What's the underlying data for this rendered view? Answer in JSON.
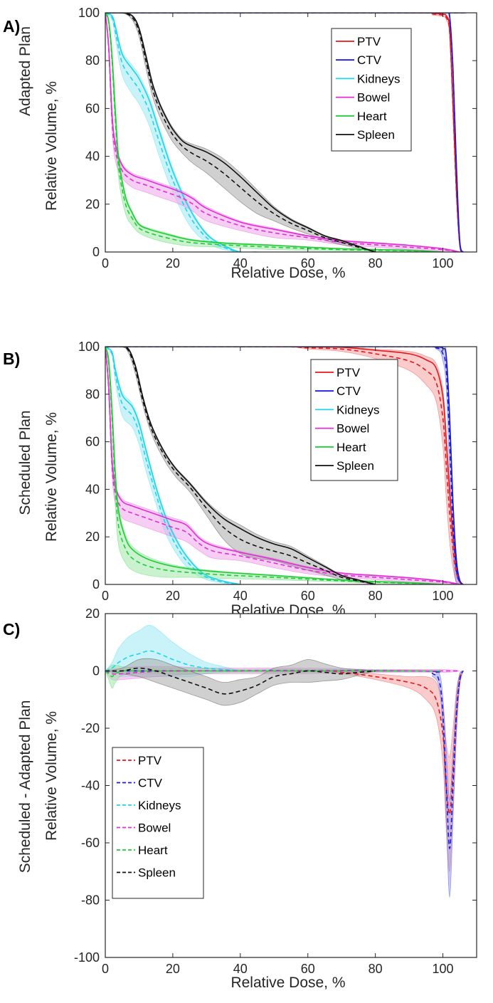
{
  "figure": {
    "xlabel": "Relative Dose, %",
    "ylabel": "Relative Volume, %"
  },
  "chart_data": [
    {
      "panel": "A)",
      "type": "line",
      "title": "",
      "row_label": "Adapted Plan",
      "xlabel": "Relative Dose, %",
      "ylabel": "Relative Volume, %",
      "xlim": [
        0,
        110
      ],
      "ylim": [
        0,
        100
      ],
      "xticks": [
        0,
        20,
        40,
        60,
        80,
        100
      ],
      "yticks": [
        0,
        20,
        40,
        60,
        80,
        100
      ],
      "legend_position": "top-right",
      "series": [
        {
          "name": "PTV",
          "color": "#e8161b",
          "band_color": "#f4a0a0",
          "x": [
            0,
            90,
            97,
            100,
            101,
            102,
            103,
            104,
            105,
            106
          ],
          "mean": [
            100,
            100,
            99.5,
            99,
            98,
            92,
            60,
            25,
            3,
            0
          ],
          "band": [
            0,
            0,
            0.5,
            0.5,
            1,
            1.5,
            2,
            2,
            1,
            0
          ]
        },
        {
          "name": "CTV",
          "color": "#1a1ad9",
          "band_color": "#9a9af0",
          "x": [
            0,
            99,
            101,
            102,
            103,
            104,
            105,
            106
          ],
          "mean": [
            100,
            100,
            100,
            98,
            75,
            35,
            4,
            0
          ],
          "band": [
            0,
            0,
            0,
            1,
            2,
            2,
            1,
            0
          ]
        },
        {
          "name": "Kidneys",
          "color": "#1fd4ea",
          "band_color": "#9ce9f4",
          "x": [
            0,
            2,
            3,
            5,
            8,
            10,
            13,
            16,
            20,
            25,
            30,
            35,
            40,
            45
          ],
          "mean": [
            100,
            98,
            92,
            79,
            72,
            68,
            59,
            46,
            30,
            15,
            6,
            2,
            0,
            0
          ],
          "band": [
            0,
            1,
            3,
            5,
            6,
            6,
            6,
            6,
            5,
            4,
            2,
            1,
            0,
            0
          ]
        },
        {
          "name": "Bowel",
          "color": "#e12ed6",
          "band_color": "#f1a6ea",
          "x": [
            0,
            1,
            2,
            3,
            5,
            8,
            12,
            16,
            22,
            26,
            30,
            40,
            50,
            60,
            70,
            80,
            90,
            100,
            105
          ],
          "mean": [
            100,
            85,
            55,
            42,
            34,
            30,
            28,
            26,
            23,
            20,
            16,
            11,
            8,
            6,
            4,
            3,
            2,
            1,
            0
          ],
          "band": [
            0,
            2,
            4,
            4,
            3,
            3,
            3,
            3,
            3,
            3,
            3,
            2,
            2,
            1,
            1,
            1,
            1,
            0.5,
            0
          ]
        },
        {
          "name": "Heart",
          "color": "#21cc36",
          "band_color": "#9fe8a8",
          "x": [
            0,
            1,
            2,
            3,
            4,
            6,
            8,
            10,
            13,
            18,
            25,
            35,
            50,
            70,
            90,
            100
          ],
          "mean": [
            100,
            96,
            80,
            55,
            35,
            20,
            14,
            10,
            8,
            6,
            4,
            3,
            2,
            1,
            0.5,
            0
          ],
          "band": [
            0,
            1,
            3,
            5,
            5,
            4,
            3,
            2,
            2,
            2,
            1.5,
            1,
            1,
            0.5,
            0.3,
            0
          ]
        },
        {
          "name": "Spleen",
          "color": "#111111",
          "band_color": "#a9a9a9",
          "x": [
            0,
            5,
            8,
            10,
            12,
            14,
            16,
            18,
            20,
            23,
            26,
            30,
            35,
            40,
            45,
            50,
            55,
            60,
            65,
            70,
            75,
            80
          ],
          "mean": [
            100,
            100,
            98,
            92,
            80,
            68,
            60,
            54,
            49,
            44,
            41,
            38,
            33,
            27,
            21,
            16,
            12,
            9,
            6,
            4,
            2,
            0
          ],
          "band": [
            0,
            0,
            1,
            2,
            3,
            3,
            3,
            3,
            3,
            3,
            4,
            5,
            6,
            6,
            5,
            3,
            2,
            1.5,
            1,
            1,
            0.5,
            0
          ]
        }
      ]
    },
    {
      "panel": "B)",
      "type": "line",
      "title": "",
      "row_label": "Scheduled Plan",
      "xlabel": "Relative Dose, %",
      "ylabel": "Relative Volume, %",
      "xlim": [
        0,
        110
      ],
      "ylim": [
        0,
        100
      ],
      "xticks": [
        0,
        20,
        40,
        60,
        80,
        100
      ],
      "yticks": [
        0,
        20,
        40,
        60,
        80,
        100
      ],
      "legend_position": "right",
      "series": [
        {
          "name": "PTV",
          "color": "#e8161b",
          "band_color": "#f4a0a0",
          "x": [
            0,
            50,
            60,
            70,
            80,
            90,
            95,
            98,
            100,
            101,
            102,
            103,
            104,
            105,
            106
          ],
          "mean": [
            100,
            100,
            99.5,
            99,
            97,
            94,
            90,
            85,
            70,
            50,
            30,
            15,
            5,
            1,
            0
          ],
          "band": [
            0,
            0,
            0.5,
            1,
            2,
            4,
            6,
            8,
            12,
            14,
            12,
            8,
            4,
            1,
            0
          ]
        },
        {
          "name": "CTV",
          "color": "#1a1ad9",
          "band_color": "#9a9af0",
          "x": [
            0,
            90,
            98,
            100,
            101,
            102,
            103,
            104,
            105,
            106
          ],
          "mean": [
            100,
            100,
            99.5,
            97,
            90,
            60,
            25,
            6,
            1,
            0
          ],
          "band": [
            0,
            0,
            0.5,
            3,
            8,
            14,
            12,
            6,
            1,
            0
          ]
        },
        {
          "name": "Kidneys",
          "color": "#1fd4ea",
          "band_color": "#9ce9f4",
          "x": [
            0,
            2,
            3,
            5,
            8,
            10,
            12,
            15,
            18,
            22,
            26,
            30,
            35,
            40
          ],
          "mean": [
            100,
            97,
            88,
            76,
            71,
            64,
            53,
            38,
            25,
            14,
            7,
            3,
            1,
            0
          ],
          "band": [
            0,
            1,
            3,
            5,
            5,
            5,
            5,
            4,
            4,
            3,
            2,
            1,
            0.5,
            0
          ]
        },
        {
          "name": "Bowel",
          "color": "#e12ed6",
          "band_color": "#f1a6ea",
          "x": [
            0,
            1,
            2,
            3,
            5,
            8,
            12,
            16,
            20,
            24,
            28,
            32,
            40,
            50,
            60,
            70,
            80,
            90,
            100,
            105
          ],
          "mean": [
            100,
            82,
            50,
            38,
            32,
            30,
            28,
            26,
            24,
            22,
            17,
            14,
            12,
            9,
            6,
            4,
            3,
            2,
            1,
            0
          ],
          "band": [
            0,
            2,
            4,
            4,
            4,
            4,
            4,
            4,
            4,
            4,
            3,
            3,
            2,
            2,
            1.5,
            1,
            1,
            1,
            0.5,
            0
          ]
        },
        {
          "name": "Heart",
          "color": "#21cc36",
          "band_color": "#9fe8a8",
          "x": [
            0,
            1,
            2,
            3,
            4,
            6,
            8,
            12,
            18,
            25,
            35,
            50,
            70,
            90,
            100
          ],
          "mean": [
            100,
            93,
            70,
            40,
            24,
            15,
            11,
            8,
            6,
            5,
            4,
            3,
            1.5,
            0.5,
            0
          ],
          "band": [
            0,
            2,
            5,
            8,
            8,
            6,
            5,
            4,
            3,
            2,
            1.5,
            1,
            0.5,
            0.3,
            0
          ]
        },
        {
          "name": "Spleen",
          "color": "#111111",
          "band_color": "#a9a9a9",
          "x": [
            0,
            5,
            7,
            9,
            11,
            13,
            15,
            18,
            21,
            25,
            30,
            35,
            40,
            45,
            50,
            55,
            60,
            65,
            70,
            75,
            80
          ],
          "mean": [
            100,
            100,
            98,
            90,
            78,
            68,
            61,
            53,
            47,
            41,
            32,
            24,
            19,
            16,
            14,
            12,
            9,
            6,
            3,
            1.5,
            0
          ],
          "band": [
            0,
            0,
            1,
            2,
            2,
            2,
            2,
            2,
            2,
            2,
            3,
            5,
            6,
            5,
            4,
            4,
            3,
            2,
            1,
            0.5,
            0
          ]
        }
      ]
    },
    {
      "panel": "C)",
      "type": "line",
      "title": "",
      "row_label": "Scheduled - Adapted Plan",
      "xlabel": "Relative Dose, %",
      "ylabel": "Relative Volume, %",
      "xlim": [
        0,
        110
      ],
      "ylim": [
        -100,
        20
      ],
      "xticks": [
        0,
        20,
        40,
        60,
        80,
        100
      ],
      "yticks": [
        20,
        0,
        -20,
        -40,
        -60,
        -80,
        -100
      ],
      "legend_position": "lower-left",
      "line_style": "dashed",
      "series": [
        {
          "name": "PTV",
          "color": "#e8161b",
          "band_color": "#f4a0a0",
          "x": [
            0,
            60,
            70,
            80,
            90,
            95,
            98,
            100,
            101,
            102,
            103,
            104,
            105,
            106
          ],
          "mean": [
            0,
            0,
            -0.5,
            -2,
            -4,
            -6,
            -10,
            -22,
            -40,
            -50,
            -35,
            -15,
            -3,
            0
          ],
          "band": [
            0,
            0,
            0.5,
            1,
            2,
            4,
            6,
            10,
            15,
            20,
            15,
            8,
            2,
            0
          ]
        },
        {
          "name": "CTV",
          "color": "#1a1ad9",
          "band_color": "#9a9af0",
          "x": [
            0,
            90,
            97,
            99,
            100,
            101,
            102,
            103,
            104,
            105,
            106
          ],
          "mean": [
            0,
            0,
            -1,
            -4,
            -15,
            -40,
            -62,
            -40,
            -15,
            -3,
            0
          ],
          "band": [
            0,
            0,
            1,
            3,
            6,
            12,
            17,
            12,
            6,
            2,
            0
          ]
        },
        {
          "name": "Kidneys",
          "color": "#1fd4ea",
          "band_color": "#9ce9f4",
          "x": [
            0,
            2,
            4,
            7,
            10,
            13,
            16,
            20,
            25,
            30,
            35,
            40
          ],
          "mean": [
            0,
            1,
            3,
            5,
            6,
            7,
            6,
            4,
            2,
            1,
            0.5,
            0
          ],
          "band": [
            0,
            2,
            5,
            7,
            8,
            9,
            8,
            6,
            4,
            2,
            1,
            0
          ]
        },
        {
          "name": "Bowel",
          "color": "#e12ed6",
          "band_color": "#f1a6ea",
          "x": [
            0,
            2,
            5,
            10,
            20,
            30,
            40,
            60,
            80,
            100,
            105
          ],
          "mean": [
            0,
            -1,
            -1,
            -0.5,
            0,
            0,
            0,
            0,
            0,
            0,
            0
          ],
          "band": [
            0,
            2,
            2,
            2,
            1.5,
            1,
            1,
            1,
            0.5,
            0.5,
            0
          ]
        },
        {
          "name": "Heart",
          "color": "#21cc36",
          "band_color": "#9fe8a8",
          "x": [
            0,
            1,
            2,
            3,
            5,
            10,
            20,
            40,
            60,
            80,
            100
          ],
          "mean": [
            0,
            -1,
            -2,
            -1,
            0,
            0,
            0,
            0,
            0,
            0,
            0
          ],
          "band": [
            0,
            2,
            4,
            3,
            1.5,
            1,
            1,
            0.5,
            0.5,
            0.3,
            0
          ]
        },
        {
          "name": "Spleen",
          "color": "#111111",
          "band_color": "#a9a9a9",
          "x": [
            0,
            5,
            10,
            15,
            20,
            25,
            30,
            35,
            40,
            45,
            50,
            55,
            60,
            65,
            70,
            75,
            80
          ],
          "mean": [
            0,
            0,
            1,
            0,
            -2,
            -4,
            -6,
            -8,
            -7,
            -5,
            -2,
            -1,
            0,
            -0.5,
            -1,
            -0.5,
            0
          ],
          "band": [
            0,
            1,
            3,
            4,
            4,
            4,
            4,
            4,
            4,
            3,
            3,
            3,
            4,
            3,
            2,
            1,
            0
          ]
        }
      ]
    }
  ]
}
